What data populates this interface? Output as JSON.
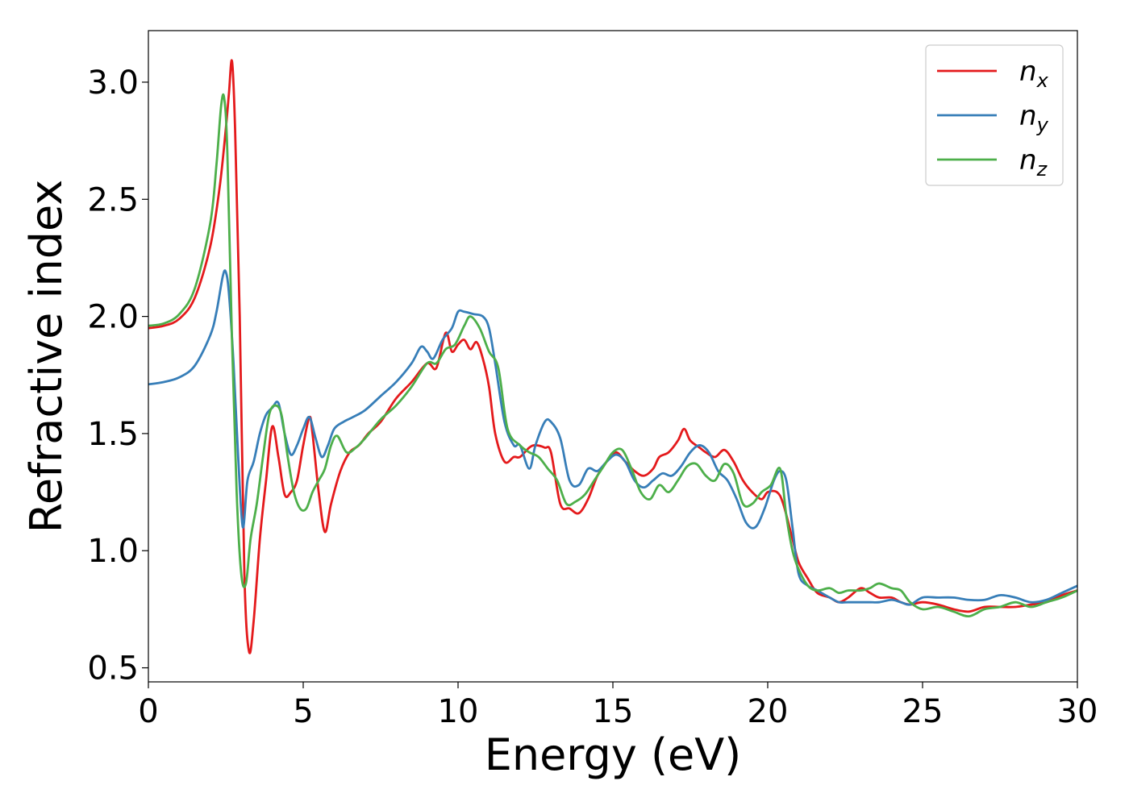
{
  "chart_data": {
    "type": "line",
    "xlabel": "Energy (eV)",
    "ylabel": "Refractive index",
    "xlim": [
      0,
      30
    ],
    "ylim": [
      0.44,
      3.22
    ],
    "xticks": [
      0,
      5,
      10,
      15,
      20,
      25,
      30
    ],
    "xtick_labels": [
      "0",
      "5",
      "10",
      "15",
      "20",
      "25",
      "30"
    ],
    "yticks": [
      0.5,
      1.0,
      1.5,
      2.0,
      2.5,
      3.0
    ],
    "ytick_labels": [
      "0.5",
      "1.0",
      "1.5",
      "2.0",
      "2.5",
      "3.0"
    ],
    "grid": false,
    "legend_position": "top-right",
    "series": [
      {
        "name": "n",
        "subscript": "x",
        "color": "#e41a1c",
        "x": [
          0,
          0.5,
          1.0,
          1.5,
          2.0,
          2.3,
          2.5,
          2.6,
          2.7,
          2.8,
          2.95,
          3.1,
          3.25,
          3.4,
          3.6,
          3.8,
          4.0,
          4.2,
          4.4,
          4.6,
          4.8,
          5.0,
          5.2,
          5.3,
          5.5,
          5.7,
          5.9,
          6.2,
          6.5,
          6.8,
          7.1,
          7.5,
          8.0,
          8.5,
          9.0,
          9.3,
          9.6,
          9.8,
          10.0,
          10.2,
          10.4,
          10.6,
          10.8,
          11.0,
          11.2,
          11.5,
          11.8,
          12.0,
          12.3,
          12.5,
          12.8,
          13.0,
          13.3,
          13.6,
          13.9,
          14.2,
          14.5,
          14.8,
          15.1,
          15.4,
          15.7,
          16.0,
          16.3,
          16.5,
          16.8,
          17.1,
          17.3,
          17.5,
          17.8,
          18.0,
          18.3,
          18.6,
          18.9,
          19.2,
          19.5,
          19.8,
          20.0,
          20.3,
          20.5,
          20.8,
          21.0,
          21.3,
          21.6,
          22.0,
          22.3,
          22.6,
          23.0,
          23.3,
          23.6,
          24.0,
          24.3,
          24.6,
          25.0,
          25.5,
          26.0,
          26.5,
          27.0,
          27.5,
          28.0,
          28.5,
          29.0,
          29.5,
          30.0
        ],
        "y": [
          1.95,
          1.96,
          1.99,
          2.08,
          2.3,
          2.55,
          2.8,
          2.95,
          3.09,
          2.8,
          2.0,
          0.9,
          0.57,
          0.7,
          1.05,
          1.3,
          1.53,
          1.4,
          1.24,
          1.25,
          1.3,
          1.45,
          1.57,
          1.5,
          1.25,
          1.08,
          1.2,
          1.34,
          1.42,
          1.45,
          1.5,
          1.55,
          1.65,
          1.72,
          1.8,
          1.78,
          1.93,
          1.85,
          1.88,
          1.9,
          1.86,
          1.89,
          1.82,
          1.7,
          1.5,
          1.38,
          1.4,
          1.4,
          1.44,
          1.45,
          1.44,
          1.42,
          1.2,
          1.18,
          1.16,
          1.22,
          1.32,
          1.38,
          1.42,
          1.38,
          1.34,
          1.32,
          1.35,
          1.4,
          1.42,
          1.47,
          1.52,
          1.47,
          1.44,
          1.42,
          1.4,
          1.43,
          1.38,
          1.3,
          1.25,
          1.22,
          1.25,
          1.25,
          1.2,
          1.05,
          0.95,
          0.88,
          0.82,
          0.8,
          0.78,
          0.8,
          0.84,
          0.82,
          0.8,
          0.8,
          0.78,
          0.77,
          0.78,
          0.77,
          0.75,
          0.74,
          0.76,
          0.76,
          0.76,
          0.77,
          0.78,
          0.81,
          0.83
        ]
      },
      {
        "name": "n",
        "subscript": "y",
        "color": "#377eb8",
        "x": [
          0,
          0.5,
          1.0,
          1.5,
          2.0,
          2.2,
          2.4,
          2.5,
          2.6,
          2.75,
          2.9,
          3.05,
          3.2,
          3.4,
          3.6,
          3.8,
          4.0,
          4.2,
          4.4,
          4.6,
          4.8,
          5.0,
          5.2,
          5.4,
          5.6,
          5.8,
          6.0,
          6.3,
          6.6,
          7.0,
          7.5,
          8.0,
          8.5,
          8.8,
          9.0,
          9.2,
          9.5,
          9.8,
          10.0,
          10.2,
          10.5,
          10.8,
          11.0,
          11.2,
          11.5,
          11.8,
          12.0,
          12.3,
          12.5,
          12.8,
          13.0,
          13.3,
          13.6,
          13.9,
          14.2,
          14.5,
          14.8,
          15.1,
          15.4,
          15.7,
          16.0,
          16.3,
          16.6,
          16.9,
          17.2,
          17.5,
          17.8,
          18.1,
          18.4,
          18.7,
          19.0,
          19.3,
          19.6,
          19.9,
          20.2,
          20.4,
          20.6,
          20.8,
          21.0,
          21.3,
          21.6,
          22.0,
          22.3,
          22.6,
          23.0,
          23.3,
          23.6,
          24.0,
          24.3,
          24.6,
          25.0,
          25.5,
          26.0,
          26.5,
          27.0,
          27.5,
          28.0,
          28.5,
          29.0,
          29.5,
          30.0
        ],
        "y": [
          1.71,
          1.72,
          1.74,
          1.79,
          1.92,
          2.02,
          2.17,
          2.19,
          2.1,
          1.8,
          1.4,
          1.1,
          1.3,
          1.38,
          1.5,
          1.58,
          1.61,
          1.63,
          1.5,
          1.41,
          1.45,
          1.52,
          1.57,
          1.48,
          1.4,
          1.45,
          1.52,
          1.55,
          1.57,
          1.6,
          1.66,
          1.72,
          1.8,
          1.87,
          1.85,
          1.82,
          1.9,
          1.95,
          2.02,
          2.02,
          2.01,
          2.0,
          1.95,
          1.8,
          1.55,
          1.45,
          1.45,
          1.35,
          1.45,
          1.55,
          1.55,
          1.48,
          1.3,
          1.28,
          1.35,
          1.34,
          1.38,
          1.41,
          1.38,
          1.3,
          1.27,
          1.3,
          1.33,
          1.32,
          1.36,
          1.42,
          1.45,
          1.42,
          1.34,
          1.3,
          1.22,
          1.12,
          1.1,
          1.18,
          1.3,
          1.34,
          1.3,
          1.1,
          0.9,
          0.85,
          0.83,
          0.8,
          0.78,
          0.78,
          0.78,
          0.78,
          0.78,
          0.79,
          0.78,
          0.77,
          0.8,
          0.8,
          0.8,
          0.79,
          0.79,
          0.81,
          0.8,
          0.78,
          0.79,
          0.82,
          0.85
        ]
      },
      {
        "name": "n",
        "subscript": "z",
        "color": "#4daf4a",
        "x": [
          0,
          0.5,
          1.0,
          1.5,
          2.0,
          2.2,
          2.35,
          2.45,
          2.55,
          2.7,
          2.85,
          3.0,
          3.15,
          3.3,
          3.5,
          3.7,
          3.9,
          4.1,
          4.3,
          4.5,
          4.7,
          4.9,
          5.1,
          5.3,
          5.5,
          5.7,
          5.9,
          6.1,
          6.4,
          6.7,
          7.0,
          7.5,
          8.0,
          8.5,
          9.0,
          9.3,
          9.6,
          9.9,
          10.2,
          10.4,
          10.7,
          11.0,
          11.3,
          11.6,
          12.0,
          12.3,
          12.6,
          12.9,
          13.2,
          13.5,
          13.8,
          14.1,
          14.4,
          14.7,
          15.0,
          15.3,
          15.6,
          15.9,
          16.2,
          16.5,
          16.8,
          17.1,
          17.4,
          17.7,
          18.0,
          18.3,
          18.6,
          18.9,
          19.2,
          19.5,
          19.8,
          20.1,
          20.4,
          20.6,
          20.8,
          21.0,
          21.3,
          21.6,
          22.0,
          22.3,
          22.6,
          23.0,
          23.3,
          23.6,
          24.0,
          24.3,
          24.6,
          25.0,
          25.5,
          26.0,
          26.5,
          27.0,
          27.5,
          28.0,
          28.5,
          29.0,
          29.5,
          30.0
        ],
        "y": [
          1.96,
          1.97,
          2.01,
          2.12,
          2.4,
          2.65,
          2.9,
          2.93,
          2.7,
          1.9,
          1.25,
          0.9,
          0.86,
          1.05,
          1.2,
          1.4,
          1.58,
          1.62,
          1.58,
          1.4,
          1.25,
          1.18,
          1.18,
          1.25,
          1.3,
          1.35,
          1.45,
          1.49,
          1.42,
          1.44,
          1.48,
          1.56,
          1.62,
          1.7,
          1.8,
          1.8,
          1.86,
          1.88,
          1.96,
          2.0,
          1.95,
          1.85,
          1.78,
          1.52,
          1.45,
          1.42,
          1.4,
          1.35,
          1.3,
          1.2,
          1.21,
          1.24,
          1.3,
          1.36,
          1.42,
          1.43,
          1.35,
          1.25,
          1.22,
          1.28,
          1.25,
          1.3,
          1.36,
          1.37,
          1.32,
          1.3,
          1.37,
          1.33,
          1.2,
          1.2,
          1.25,
          1.28,
          1.35,
          1.15,
          1.0,
          0.92,
          0.85,
          0.83,
          0.84,
          0.82,
          0.83,
          0.83,
          0.84,
          0.86,
          0.84,
          0.83,
          0.78,
          0.75,
          0.76,
          0.74,
          0.72,
          0.75,
          0.76,
          0.78,
          0.76,
          0.78,
          0.8,
          0.83
        ]
      }
    ]
  }
}
